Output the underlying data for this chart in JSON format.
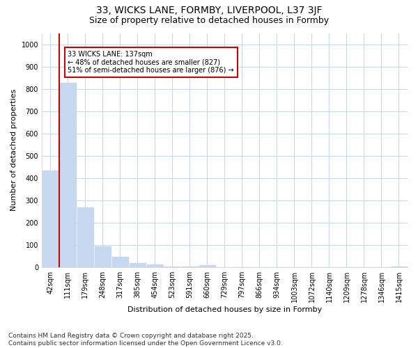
{
  "title": "33, WICKS LANE, FORMBY, LIVERPOOL, L37 3JF",
  "subtitle": "Size of property relative to detached houses in Formby",
  "xlabel": "Distribution of detached houses by size in Formby",
  "ylabel": "Number of detached properties",
  "categories": [
    "42sqm",
    "111sqm",
    "179sqm",
    "248sqm",
    "317sqm",
    "385sqm",
    "454sqm",
    "523sqm",
    "591sqm",
    "660sqm",
    "729sqm",
    "797sqm",
    "866sqm",
    "934sqm",
    "1003sqm",
    "1072sqm",
    "1140sqm",
    "1209sqm",
    "1278sqm",
    "1346sqm",
    "1415sqm"
  ],
  "values": [
    435,
    827,
    268,
    95,
    47,
    20,
    12,
    4,
    2,
    10,
    1,
    1,
    1,
    0,
    0,
    0,
    0,
    0,
    0,
    0,
    4
  ],
  "bar_color": "#c5d8f0",
  "vline_x": 0.5,
  "vline_color": "#cc0000",
  "ylim": [
    0,
    1050
  ],
  "yticks": [
    0,
    100,
    200,
    300,
    400,
    500,
    600,
    700,
    800,
    900,
    1000
  ],
  "annotation_text": "33 WICKS LANE: 137sqm\n← 48% of detached houses are smaller (827)\n51% of semi-detached houses are larger (876) →",
  "annotation_box_color": "#ffffff",
  "annotation_border_color": "#cc0000",
  "footer_text": "Contains HM Land Registry data © Crown copyright and database right 2025.\nContains public sector information licensed under the Open Government Licence v3.0.",
  "background_color": "#ffffff",
  "grid_color": "#c8d8e8",
  "title_fontsize": 10,
  "subtitle_fontsize": 9,
  "axis_label_fontsize": 8,
  "tick_fontsize": 7,
  "footer_fontsize": 6.5
}
